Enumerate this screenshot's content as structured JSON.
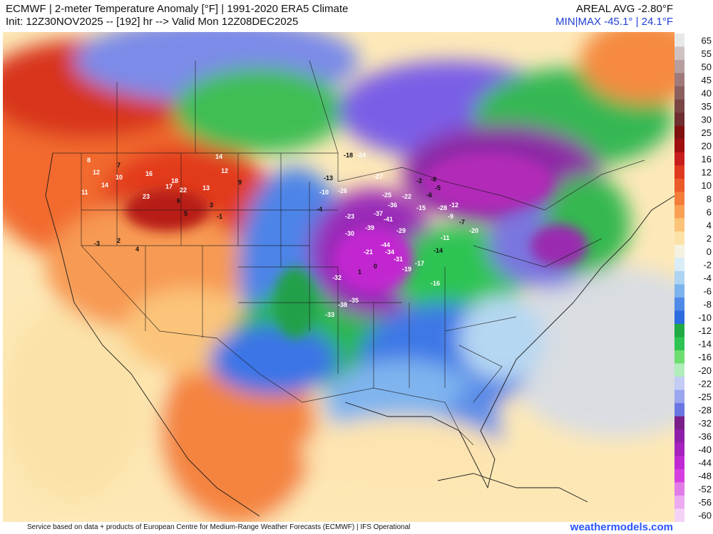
{
  "header": {
    "title": "ECMWF | 2-meter Temperature Anomaly [°F] | 1991-2020 ERA5 Climate",
    "init_line": "Init: 12Z30NOV2025 -- [192] hr --> Valid Mon 12Z08DEC2025",
    "areal_avg": "AREAL AVG -2.80°F",
    "min_max": "MIN|MAX -45.1° | 24.1°F"
  },
  "footer": {
    "credit": "Service based on data + products of European Centre for Medium-Range Weather Forecasts (ECMWF) | IFS Operational",
    "brand": "weathermodels.com"
  },
  "colorbar": {
    "ticks": [
      "65",
      "55",
      "50",
      "45",
      "40",
      "35",
      "30",
      "25",
      "20",
      "16",
      "12",
      "10",
      "8",
      "6",
      "4",
      "2",
      "0",
      "-2",
      "-4",
      "-6",
      "-8",
      "-10",
      "-12",
      "-14",
      "-16",
      "-20",
      "-22",
      "-25",
      "-28",
      "-32",
      "-36",
      "-40",
      "-44",
      "-48",
      "-52",
      "-56",
      "-60"
    ],
    "colors": [
      "#e8e8e8",
      "#d0c2c2",
      "#b89e9e",
      "#a07a7a",
      "#8c5f5f",
      "#7a4545",
      "#6e2e2e",
      "#7e1010",
      "#a00f0f",
      "#c81e1e",
      "#e03a1e",
      "#ec5a2a",
      "#f57d3c",
      "#f9a055",
      "#fbc478",
      "#fce2a6",
      "#f6f2e0",
      "#d9ecf8",
      "#aed4f3",
      "#7db3ee",
      "#4f8ae8",
      "#2c6be0",
      "#1faa46",
      "#2ec452",
      "#6ede70",
      "#b0edbb",
      "#c4ccf4",
      "#9aa6ee",
      "#6a76e2",
      "#7a1f8a",
      "#8f1fa8",
      "#a622bd",
      "#bf28d2",
      "#d53fe0",
      "#e27ae8",
      "#ecaaf0",
      "#f4d2f6"
    ]
  },
  "map_labels": [
    {
      "t": "8",
      "c": "w"
    },
    {
      "t": "12",
      "c": "w"
    },
    {
      "t": "7",
      "c": "d"
    },
    {
      "t": "10",
      "c": "w"
    },
    {
      "t": "14",
      "c": "w"
    },
    {
      "t": "11",
      "c": "w"
    },
    {
      "t": "16",
      "c": "w"
    },
    {
      "t": "18",
      "c": "w"
    },
    {
      "t": "17",
      "c": "w"
    },
    {
      "t": "23",
      "c": "w"
    },
    {
      "t": "22",
      "c": "w"
    },
    {
      "t": "13",
      "c": "w"
    },
    {
      "t": "14",
      "c": "w"
    },
    {
      "t": "12",
      "c": "w"
    },
    {
      "t": "9",
      "c": "d"
    },
    {
      "t": "6",
      "c": "d"
    },
    {
      "t": "5",
      "c": "d"
    },
    {
      "t": "3",
      "c": "d"
    },
    {
      "t": "-1",
      "c": "d"
    },
    {
      "t": "-3",
      "c": "d"
    },
    {
      "t": "2",
      "c": "d"
    },
    {
      "t": "4",
      "c": "d"
    },
    {
      "t": "-4",
      "c": "d"
    },
    {
      "t": "-10",
      "c": "w"
    },
    {
      "t": "-13",
      "c": "d"
    },
    {
      "t": "-18",
      "c": "d"
    },
    {
      "t": "-24",
      "c": "w"
    },
    {
      "t": "-26",
      "c": "w"
    },
    {
      "t": "-27",
      "c": "w"
    },
    {
      "t": "-25",
      "c": "w"
    },
    {
      "t": "-36",
      "c": "w"
    },
    {
      "t": "-37",
      "c": "w"
    },
    {
      "t": "-41",
      "c": "w"
    },
    {
      "t": "-39",
      "c": "w"
    },
    {
      "t": "-30",
      "c": "w"
    },
    {
      "t": "-44",
      "c": "w"
    },
    {
      "t": "-34",
      "c": "w"
    },
    {
      "t": "-31",
      "c": "w"
    },
    {
      "t": "-29",
      "c": "w"
    },
    {
      "t": "-23",
      "c": "w"
    },
    {
      "t": "-21",
      "c": "w"
    },
    {
      "t": "-19",
      "c": "w"
    },
    {
      "t": "-17",
      "c": "w"
    },
    {
      "t": "-16",
      "c": "w"
    },
    {
      "t": "-14",
      "c": "d"
    },
    {
      "t": "-11",
      "c": "w"
    },
    {
      "t": "-9",
      "c": "w"
    },
    {
      "t": "-7",
      "c": "d"
    },
    {
      "t": "-20",
      "c": "w"
    },
    {
      "t": "-28",
      "c": "w"
    },
    {
      "t": "-12",
      "c": "w"
    },
    {
      "t": "-15",
      "c": "w"
    },
    {
      "t": "-6",
      "c": "d"
    },
    {
      "t": "-5",
      "c": "d"
    },
    {
      "t": "-2",
      "c": "d"
    },
    {
      "t": "-8",
      "c": "d"
    },
    {
      "t": "-22",
      "c": "w"
    },
    {
      "t": "0",
      "c": "d"
    },
    {
      "t": "1",
      "c": "d"
    },
    {
      "t": "-32",
      "c": "w"
    },
    {
      "t": "-38",
      "c": "w"
    },
    {
      "t": "-35",
      "c": "w"
    },
    {
      "t": "-33",
      "c": "w"
    }
  ]
}
